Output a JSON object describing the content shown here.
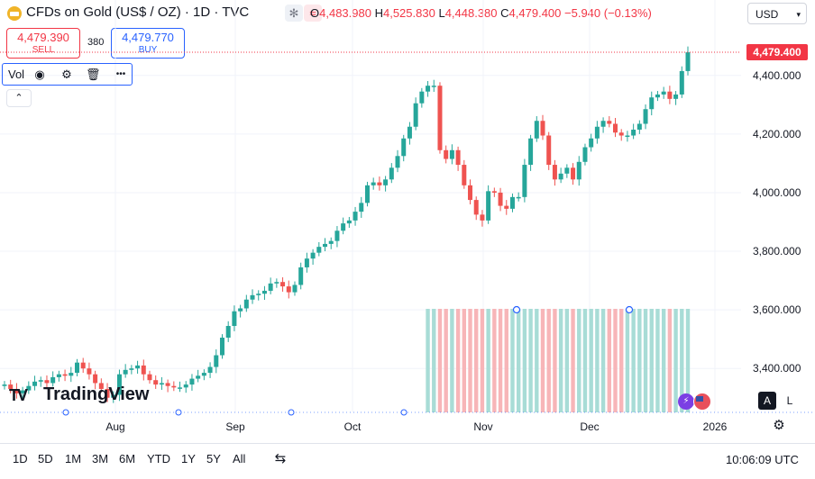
{
  "header": {
    "symbol": "CFDs on Gold (US$ / OZ) · 1D · TVC",
    "mode_a_glyph": "✻",
    "mode_b_glyph": "≈",
    "open_key": "O",
    "open": "4,483.980",
    "high_key": "H",
    "high": "4,525.830",
    "low_key": "L",
    "low": "4,448.380",
    "close_key": "C",
    "close": "4,479.400",
    "change": "−5.940 (−0.13%)",
    "currency": "USD",
    "currency_caret": "▾"
  },
  "trade": {
    "sell_price": "4,479.390",
    "sell_label": "SELL",
    "spread": "380",
    "buy_price": "4,479.770",
    "buy_label": "BUY"
  },
  "indicator": {
    "label": "Vol",
    "eye_glyph": "◉",
    "settings_glyph": "⚙",
    "delete_glyph": "🗑",
    "more_glyph": "•••",
    "collapse_glyph": "⌃"
  },
  "price_tag": "4,479.400",
  "logo": {
    "mark": "TV",
    "text": "TradingView"
  },
  "scale_buttons": {
    "auto": "A",
    "log": "L"
  },
  "flash_glyph": "⚡",
  "settings_glyph": "⚙",
  "compare_glyph": "⇆",
  "ranges": [
    "1D",
    "5D",
    "1M",
    "3M",
    "6M",
    "YTD",
    "1Y",
    "5Y",
    "All"
  ],
  "clock": "10:06:09 UTC",
  "colors": {
    "up": "#26a69a",
    "down": "#ef5350",
    "accent": "#2962ff",
    "sell": "#f23645"
  },
  "chart_data": {
    "type": "candlestick",
    "y_axis": {
      "ticks": [
        3400,
        3600,
        3800,
        4000,
        4200,
        4400
      ],
      "tick_labels": [
        "3,400.000",
        "3,600.000",
        "3,800.000",
        "4,000.000",
        "4,200.000",
        "4,400.000"
      ],
      "range": [
        3250,
        4550
      ]
    },
    "x_axis": {
      "labels": [
        "Aug",
        "Sep",
        "Oct",
        "Nov",
        "Dec",
        "2026"
      ]
    },
    "last_price": 4479.4,
    "closes": [
      3345,
      3330,
      3315,
      3325,
      3340,
      3355,
      3360,
      3350,
      3370,
      3380,
      3375,
      3385,
      3420,
      3400,
      3380,
      3350,
      3330,
      3300,
      3310,
      3380,
      3395,
      3400,
      3410,
      3380,
      3360,
      3345,
      3350,
      3340,
      3335,
      3335,
      3345,
      3365,
      3375,
      3385,
      3405,
      3445,
      3505,
      3545,
      3595,
      3605,
      3635,
      3650,
      3655,
      3665,
      3690,
      3695,
      3680,
      3660,
      3685,
      3745,
      3775,
      3795,
      3815,
      3825,
      3835,
      3870,
      3895,
      3905,
      3935,
      3965,
      4025,
      4035,
      4025,
      4045,
      4085,
      4125,
      4185,
      4225,
      4305,
      4345,
      4365,
      4365,
      4145,
      4115,
      4145,
      4095,
      4025,
      3975,
      3925,
      3905,
      4005,
      4000,
      3955,
      3945,
      3985,
      3985,
      4095,
      4185,
      4245,
      4195,
      4095,
      4045,
      4065,
      4085,
      4045,
      4105,
      4155,
      4185,
      4225,
      4245,
      4235,
      4205,
      4195,
      4195,
      4215,
      4235,
      4285,
      4325,
      4335,
      4345,
      4320,
      4335,
      4415,
      4479
    ]
  }
}
